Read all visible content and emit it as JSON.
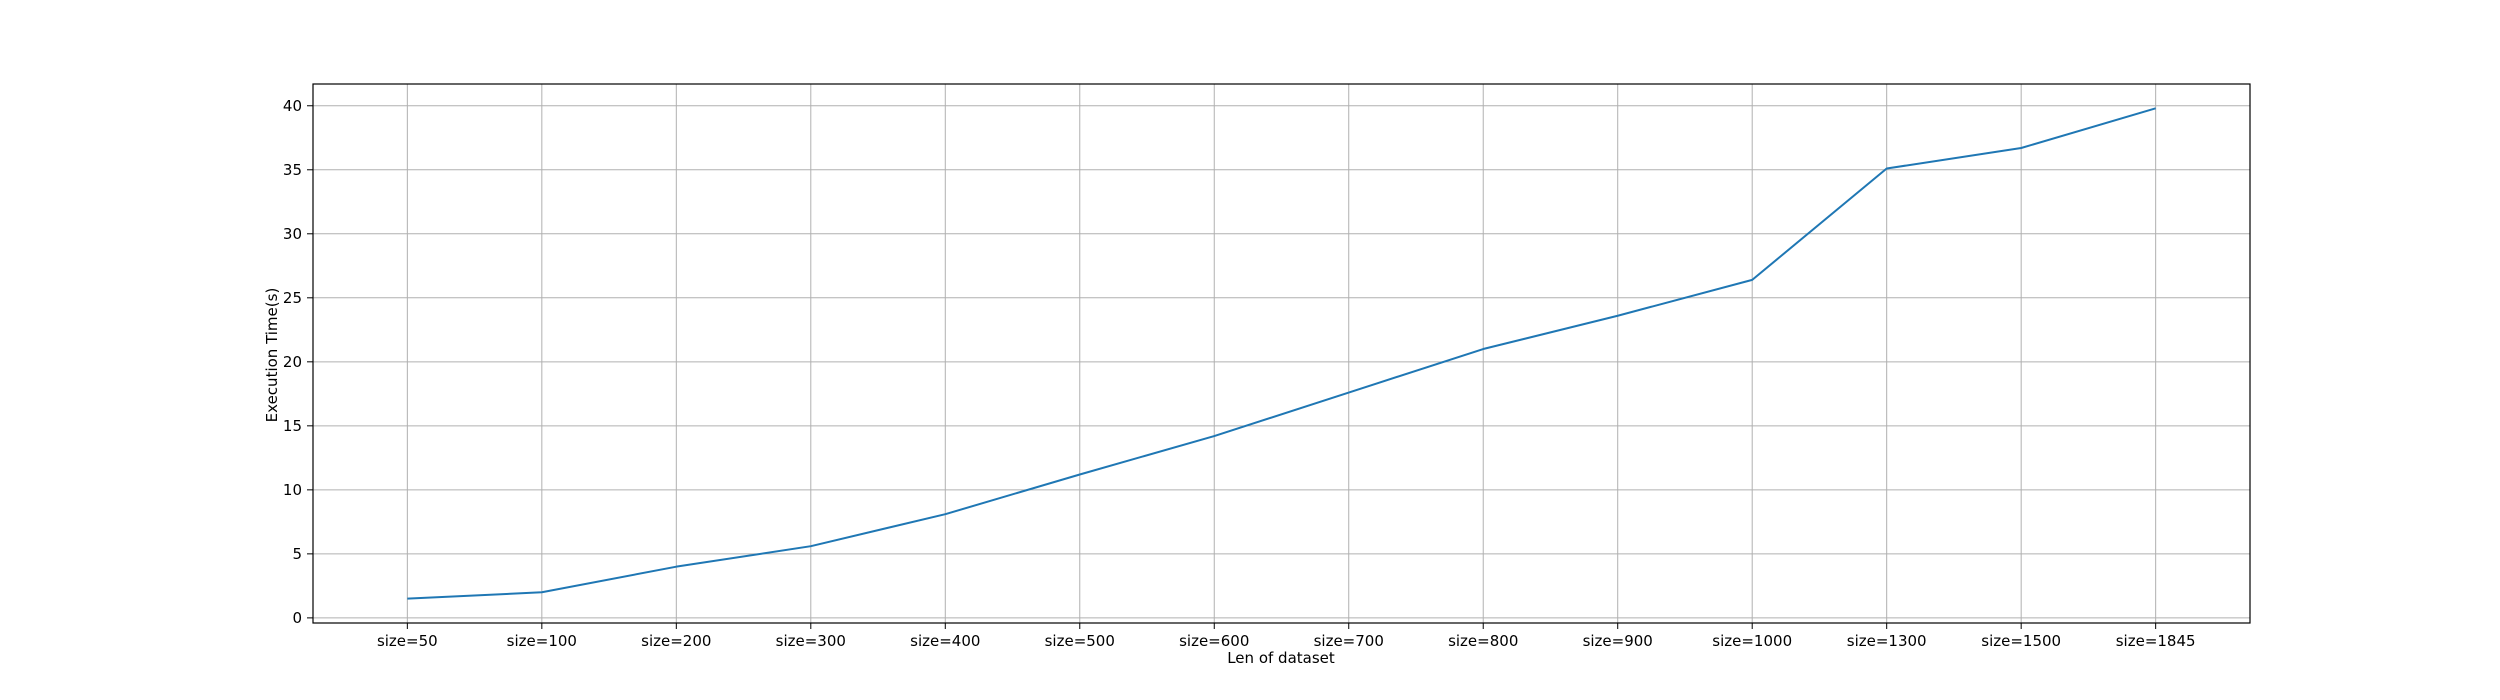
{
  "chart_data": {
    "type": "line",
    "title": "",
    "xlabel": "Len of dataset",
    "ylabel": "Execution Time(s)",
    "categories": [
      "size=50",
      "size=100",
      "size=200",
      "size=300",
      "size=400",
      "size=500",
      "size=600",
      "size=700",
      "size=800",
      "size=900",
      "size=1000",
      "size=1300",
      "size=1500",
      "size=1845"
    ],
    "series": [
      {
        "color": "#1f77b4",
        "values": [
          1.5,
          2.0,
          4.0,
          5.6,
          8.1,
          11.2,
          14.2,
          17.6,
          21.0,
          23.6,
          26.4,
          35.1,
          36.7,
          39.8
        ]
      }
    ],
    "ylim": [
      -0.4,
      41.7
    ],
    "yticks": [
      0,
      5,
      10,
      15,
      20,
      25,
      30,
      35,
      40
    ],
    "grid": true,
    "legend": "none"
  }
}
